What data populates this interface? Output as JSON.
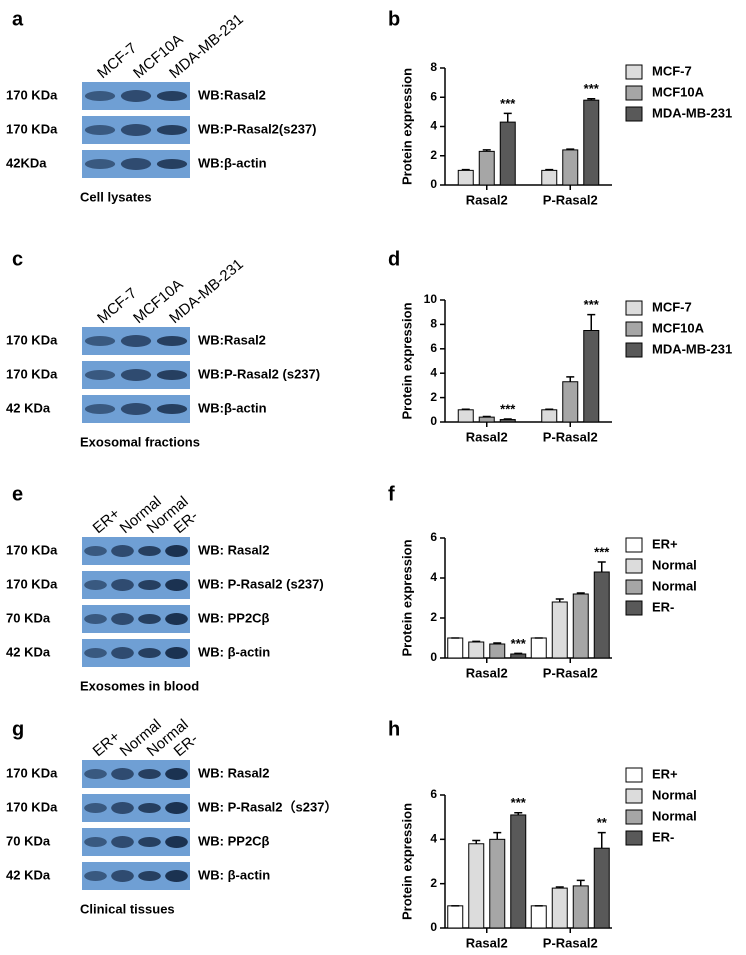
{
  "panels": [
    {
      "panel": "a",
      "columns": [
        "MCF-7",
        "MCF10A",
        "MDA-MB-231"
      ],
      "rows": [
        {
          "size": "170 KDa",
          "target": "WB:Rasal2"
        },
        {
          "size": "170 KDa",
          "target": "WB:P-Rasal2(s237)"
        },
        {
          "size": "42KDa",
          "target": "WB:β-actin"
        }
      ],
      "caption": "Cell lysates"
    },
    {
      "panel": "c",
      "columns": [
        "MCF-7",
        "MCF10A",
        "MDA-MB-231"
      ],
      "rows": [
        {
          "size": "170 KDa",
          "target": "WB:Rasal2"
        },
        {
          "size": "170 KDa",
          "target": "WB:P-Rasal2 (s237)"
        },
        {
          "size": "42 KDa",
          "target": "WB:β-actin"
        }
      ],
      "caption": "Exosomal fractions"
    },
    {
      "panel": "e",
      "columns": [
        "ER+",
        "Normal",
        "Normal",
        "ER-"
      ],
      "rows": [
        {
          "size": "170 KDa",
          "target": "WB: Rasal2"
        },
        {
          "size": "170 KDa",
          "target": "WB: P-Rasal2 (s237)"
        },
        {
          "size": "70 KDa",
          "target": "WB: PP2Cβ"
        },
        {
          "size": "42 KDa",
          "target": "WB: β-actin"
        }
      ],
      "caption": "Exosomes in blood"
    },
    {
      "panel": "g",
      "columns": [
        "ER+",
        "Normal",
        "Normal",
        "ER-"
      ],
      "rows": [
        {
          "size": "170 KDa",
          "target": "WB: Rasal2"
        },
        {
          "size": "170 KDa",
          "target": "WB: P-Rasal2（s237）"
        },
        {
          "size": "70 KDa",
          "target": "WB: PP2Cβ"
        },
        {
          "size": "42 KDa",
          "target": "WB: β-actin"
        }
      ],
      "caption": "Clinical  tissues"
    }
  ],
  "chart_data": [
    {
      "type": "bar",
      "panel": "b",
      "ylabel": "Protein expression",
      "categories": [
        "Rasal2",
        "P-Rasal2"
      ],
      "ylim": [
        0,
        8
      ],
      "yticks": [
        0,
        2,
        4,
        6,
        8
      ],
      "series": [
        {
          "name": "MCF-7",
          "color": "#dcdcdc",
          "values": [
            1,
            1
          ],
          "errors": [
            0.05,
            0.05
          ],
          "annotations": [
            null,
            null
          ]
        },
        {
          "name": "MCF10A",
          "color": "#a6a6a6",
          "values": [
            2.3,
            2.4
          ],
          "errors": [
            0.1,
            0.05
          ],
          "annotations": [
            null,
            null
          ]
        },
        {
          "name": "MDA-MB-231",
          "color": "#595959",
          "values": [
            4.3,
            5.8
          ],
          "errors": [
            0.6,
            0.1
          ],
          "annotations": [
            "***",
            "***"
          ]
        }
      ]
    },
    {
      "type": "bar",
      "panel": "d",
      "ylabel": "Protein expression",
      "categories": [
        "Rasal2",
        "P-Rasal2"
      ],
      "ylim": [
        0,
        10
      ],
      "yticks": [
        0,
        2,
        4,
        6,
        8,
        10
      ],
      "series": [
        {
          "name": "MCF-7",
          "color": "#dcdcdc",
          "values": [
            1,
            1
          ],
          "errors": [
            0.05,
            0.05
          ],
          "annotations": [
            null,
            null
          ]
        },
        {
          "name": "MCF10A",
          "color": "#a6a6a6",
          "values": [
            0.4,
            3.3
          ],
          "errors": [
            0.05,
            0.4
          ],
          "annotations": [
            null,
            null
          ]
        },
        {
          "name": "MDA-MB-231",
          "color": "#595959",
          "values": [
            0.2,
            7.5
          ],
          "errors": [
            0.05,
            1.3
          ],
          "annotations": [
            "***",
            "***"
          ]
        }
      ]
    },
    {
      "type": "bar",
      "panel": "f",
      "ylabel": "Protein expression",
      "categories": [
        "Rasal2",
        "P-Rasal2"
      ],
      "ylim": [
        0,
        6
      ],
      "yticks": [
        0,
        2,
        4,
        6
      ],
      "series": [
        {
          "name": "ER+",
          "color": "#ffffff",
          "values": [
            1,
            1
          ],
          "errors": [
            0,
            0
          ],
          "annotations": [
            null,
            null
          ]
        },
        {
          "name": "Normal",
          "color": "#dcdcdc",
          "values": [
            0.8,
            2.8
          ],
          "errors": [
            0.03,
            0.15
          ],
          "annotations": [
            null,
            null
          ]
        },
        {
          "name": "Normal",
          "color": "#a6a6a6",
          "values": [
            0.7,
            3.2
          ],
          "errors": [
            0.05,
            0.05
          ],
          "annotations": [
            null,
            null
          ]
        },
        {
          "name": "ER-",
          "color": "#595959",
          "values": [
            0.2,
            4.3
          ],
          "errors": [
            0.03,
            0.5
          ],
          "annotations": [
            "***",
            "***"
          ]
        }
      ]
    },
    {
      "type": "bar",
      "panel": "h",
      "ylabel": "Protein expression",
      "categories": [
        "Rasal2",
        "P-Rasal2"
      ],
      "ylim": [
        0,
        6
      ],
      "yticks": [
        0,
        2,
        4,
        6
      ],
      "series": [
        {
          "name": "ER+",
          "color": "#ffffff",
          "values": [
            1,
            1
          ],
          "errors": [
            0,
            0
          ],
          "annotations": [
            null,
            null
          ]
        },
        {
          "name": "Normal",
          "color": "#dcdcdc",
          "values": [
            3.8,
            1.8
          ],
          "errors": [
            0.15,
            0.05
          ],
          "annotations": [
            null,
            null
          ]
        },
        {
          "name": "Normal",
          "color": "#a6a6a6",
          "values": [
            4.0,
            1.9
          ],
          "errors": [
            0.3,
            0.25
          ],
          "annotations": [
            null,
            null
          ]
        },
        {
          "name": "ER-",
          "color": "#595959",
          "values": [
            5.1,
            3.6
          ],
          "errors": [
            0.1,
            0.7
          ],
          "annotations": [
            "***",
            "**"
          ]
        }
      ]
    }
  ]
}
